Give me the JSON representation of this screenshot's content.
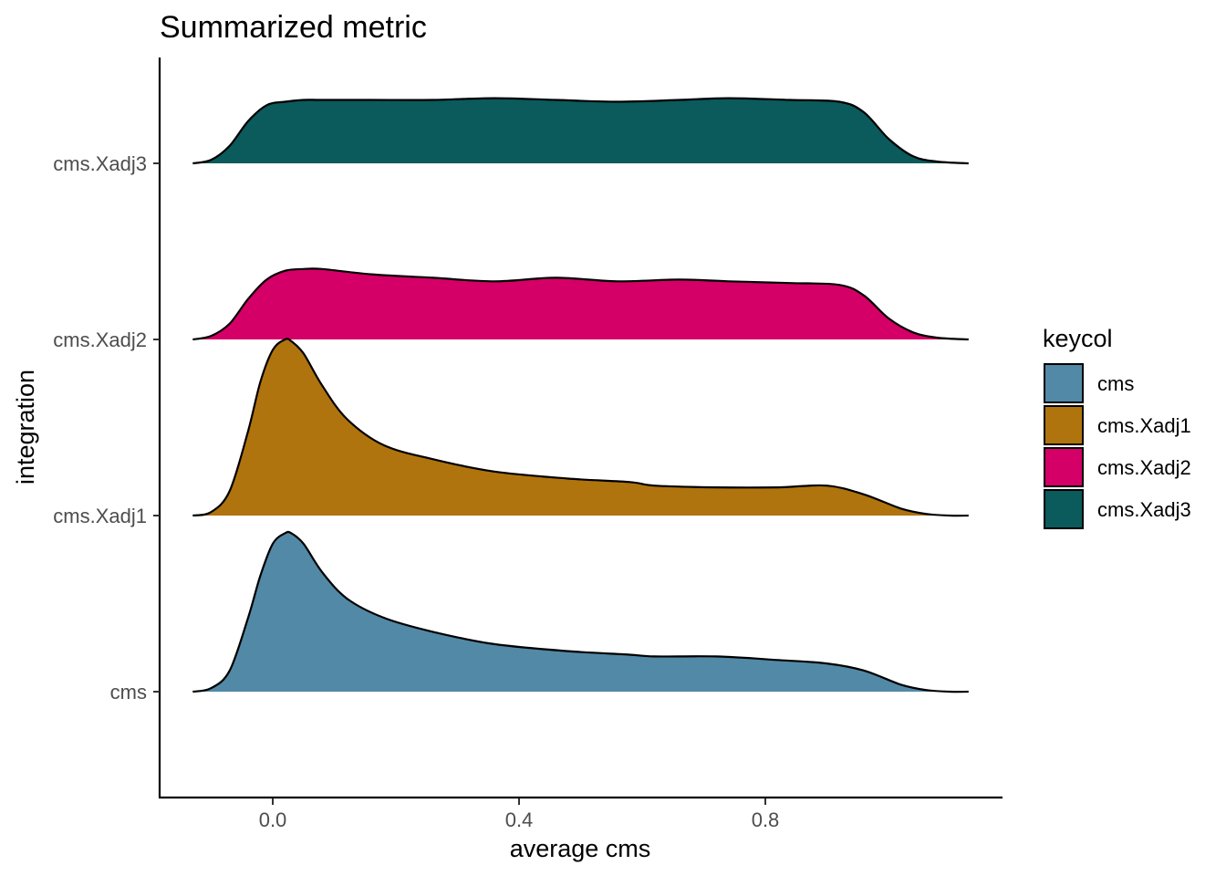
{
  "chart_data": {
    "type": "area",
    "subtype": "ridgeline-density",
    "title": "Summarized metric",
    "xlabel": "average cms",
    "ylabel": "integration",
    "xlim": [
      -0.19,
      1.18
    ],
    "x_ticks": [
      0.0,
      0.4,
      0.8
    ],
    "x_tick_labels": [
      "0.0",
      "0.4",
      "0.8"
    ],
    "categories": [
      "cms",
      "cms.Xadj1",
      "cms.Xadj2",
      "cms.Xadj3"
    ],
    "grid": false,
    "legend": {
      "title": "keycol",
      "placement": "right",
      "entries": [
        "cms",
        "cms.Xadj1",
        "cms.Xadj2",
        "cms.Xadj3"
      ]
    },
    "series": [
      {
        "name": "cms",
        "color": "#5289a6",
        "x": [
          -0.13,
          -0.1,
          -0.07,
          -0.04,
          -0.02,
          0.0,
          0.02,
          0.03,
          0.05,
          0.08,
          0.12,
          0.18,
          0.26,
          0.36,
          0.48,
          0.58,
          0.62,
          0.72,
          0.82,
          0.9,
          0.96,
          1.02,
          1.06,
          1.1,
          1.13
        ],
        "density": [
          0.0,
          0.02,
          0.12,
          0.42,
          0.66,
          0.84,
          0.9,
          0.9,
          0.84,
          0.68,
          0.53,
          0.42,
          0.34,
          0.27,
          0.23,
          0.21,
          0.2,
          0.2,
          0.18,
          0.16,
          0.12,
          0.04,
          0.01,
          0.0,
          0.0
        ]
      },
      {
        "name": "cms.Xadj1",
        "color": "#b0740e",
        "x": [
          -0.13,
          -0.1,
          -0.07,
          -0.04,
          -0.02,
          0.0,
          0.02,
          0.03,
          0.05,
          0.08,
          0.12,
          0.18,
          0.26,
          0.36,
          0.48,
          0.58,
          0.62,
          0.72,
          0.82,
          0.9,
          0.96,
          1.02,
          1.06,
          1.1,
          1.13
        ],
        "density": [
          0.0,
          0.02,
          0.14,
          0.48,
          0.76,
          0.94,
          1.0,
          0.99,
          0.92,
          0.74,
          0.55,
          0.4,
          0.32,
          0.25,
          0.21,
          0.19,
          0.17,
          0.16,
          0.16,
          0.17,
          0.12,
          0.04,
          0.01,
          0.0,
          0.0
        ]
      },
      {
        "name": "cms.Xadj2",
        "color": "#d40067",
        "x": [
          -0.13,
          -0.1,
          -0.07,
          -0.04,
          -0.01,
          0.02,
          0.05,
          0.08,
          0.16,
          0.26,
          0.36,
          0.46,
          0.56,
          0.66,
          0.74,
          0.84,
          0.92,
          0.96,
          1.0,
          1.04,
          1.08,
          1.13
        ],
        "density": [
          0.0,
          0.02,
          0.09,
          0.23,
          0.34,
          0.39,
          0.4,
          0.4,
          0.37,
          0.35,
          0.33,
          0.35,
          0.33,
          0.34,
          0.33,
          0.32,
          0.31,
          0.25,
          0.12,
          0.04,
          0.01,
          0.0
        ]
      },
      {
        "name": "cms.Xadj3",
        "color": "#0b5a5c",
        "x": [
          -0.13,
          -0.1,
          -0.07,
          -0.04,
          -0.01,
          0.02,
          0.05,
          0.08,
          0.16,
          0.26,
          0.36,
          0.46,
          0.56,
          0.66,
          0.74,
          0.84,
          0.92,
          0.96,
          1.0,
          1.04,
          1.08,
          1.13
        ],
        "density": [
          0.0,
          0.02,
          0.1,
          0.24,
          0.33,
          0.35,
          0.36,
          0.36,
          0.36,
          0.36,
          0.37,
          0.36,
          0.35,
          0.36,
          0.37,
          0.36,
          0.35,
          0.29,
          0.14,
          0.04,
          0.01,
          0.0
        ]
      }
    ]
  }
}
